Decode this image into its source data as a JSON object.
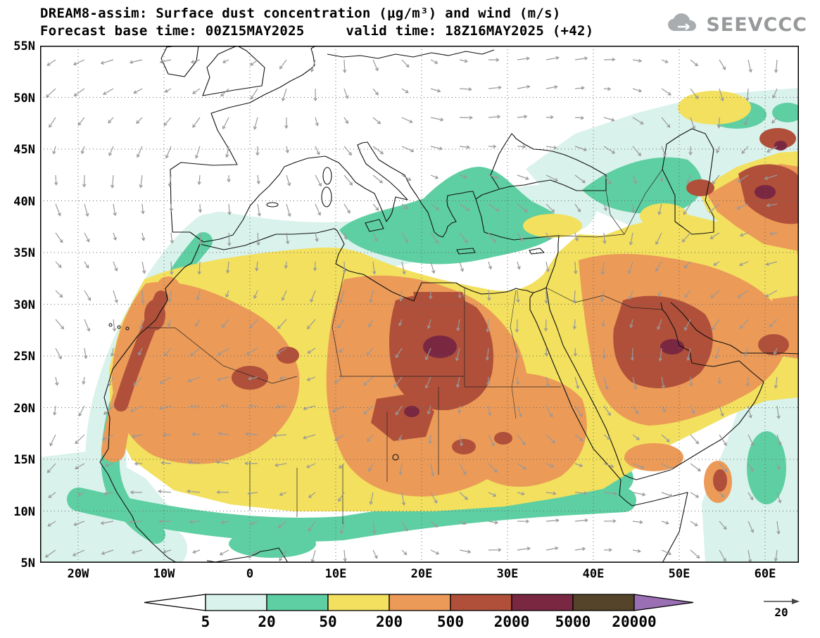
{
  "header": {
    "title_line1": "DREAM8-assim: Surface dust concentration (μg/m³) and wind (m/s)",
    "title_line2": "Forecast base time: 00Z15MAY2025     valid time: 18Z16MAY2025 (+42)",
    "logo_text": "SEEVCCC"
  },
  "axes": {
    "lat_labels": [
      "55N",
      "50N",
      "45N",
      "40N",
      "35N",
      "30N",
      "25N",
      "20N",
      "15N",
      "10N",
      "5N"
    ],
    "lon_labels": [
      "20W",
      "10W",
      "0",
      "10E",
      "20E",
      "30E",
      "40E",
      "50E",
      "60E"
    ]
  },
  "legend": {
    "tick_labels": [
      "5",
      "20",
      "50",
      "200",
      "500",
      "2000",
      "5000",
      "20000"
    ],
    "wind_reference_label": "20"
  },
  "chart_data": {
    "type": "heatmap",
    "title": "DREAM8-assim: Surface dust concentration (μg/m³) and wind (m/s)",
    "forecast_base_time": "00Z15MAY2025",
    "valid_time": "18Z16MAY2025",
    "forecast_hour": "+42",
    "units": "μg/m³",
    "wind_units": "m/s",
    "x_axis": {
      "label": "longitude",
      "tick_values": [
        -20,
        -10,
        0,
        10,
        20,
        30,
        40,
        50,
        60
      ],
      "tick_labels": [
        "20W",
        "10W",
        "0",
        "10E",
        "20E",
        "30E",
        "40E",
        "50E",
        "60E"
      ],
      "range": [
        -25,
        64
      ]
    },
    "y_axis": {
      "label": "latitude",
      "tick_values": [
        55,
        50,
        45,
        40,
        35,
        30,
        25,
        20,
        15,
        10,
        5
      ],
      "tick_labels": [
        "55N",
        "50N",
        "45N",
        "40N",
        "35N",
        "30N",
        "25N",
        "20N",
        "15N",
        "10N",
        "5N"
      ],
      "range": [
        5,
        55
      ]
    },
    "contour_levels": [
      5,
      20,
      50,
      200,
      500,
      2000,
      5000,
      20000
    ],
    "level_colors": [
      "#ffffff",
      "#d9f2ec",
      "#5ecfa2",
      "#f2e05e",
      "#eb9a58",
      "#b0503a",
      "#7a2741",
      "#55432a",
      "#9a6fb3"
    ],
    "wind_reference": 20,
    "wind_arrow_color": "#999999",
    "notable_features": [
      "Dust concentrations of 500-2000 μg/m³ over central Libya/western Egypt, Iraq/northern Saudi Arabia and Turkmenistan, with embedded maxima above 2000 μg/m³",
      "Broad 50-500 μg/m³ dust plume covering the Sahara, Sahel, Arabian Peninsula and Iran",
      "20-50 μg/m³ dust transported over the central/eastern Mediterranean, Aegean Sea and Caucasus; clean air (<5) over the Atlantic and most of Europe"
    ]
  }
}
